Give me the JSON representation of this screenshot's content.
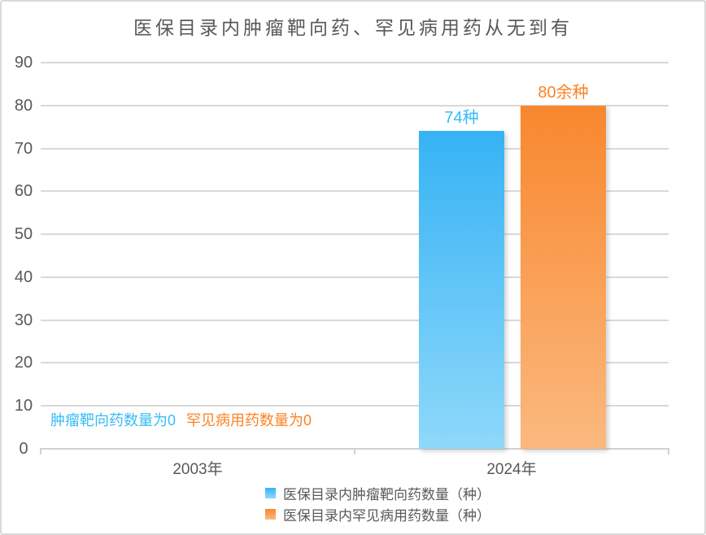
{
  "frame": {
    "background": "#FFFFFF",
    "border_color": "#D9D9D9"
  },
  "chart_data": {
    "type": "bar",
    "title": "医保目录内肿瘤靶向药、罕见病用药从无到有",
    "categories": [
      "2003年",
      "2024年"
    ],
    "series": [
      {
        "name": "医保目录内肿瘤靶向药数量（种）",
        "values": [
          0,
          74
        ],
        "data_labels": [
          "肿瘤靶向药数量为0",
          "74种"
        ],
        "color_top": "#35B3F4",
        "color_bottom": "#8FD8FA",
        "label_color": "#36BCF6"
      },
      {
        "name": "医保目录内罕见病用药数量（种）",
        "values": [
          0,
          80
        ],
        "data_labels": [
          "罕见病用药数量为0",
          "80余种"
        ],
        "color_top": "#F8872E",
        "color_bottom": "#FBB97F",
        "label_color": "#FB8327"
      }
    ],
    "ylim": [
      0,
      90
    ],
    "ytick_interval": 10,
    "yticks": [
      0,
      10,
      20,
      30,
      40,
      50,
      60,
      70,
      80,
      90
    ],
    "grid": true,
    "gridline_color": "#D9D9D9",
    "text_color": "#595959",
    "legend_position": "bottom"
  }
}
